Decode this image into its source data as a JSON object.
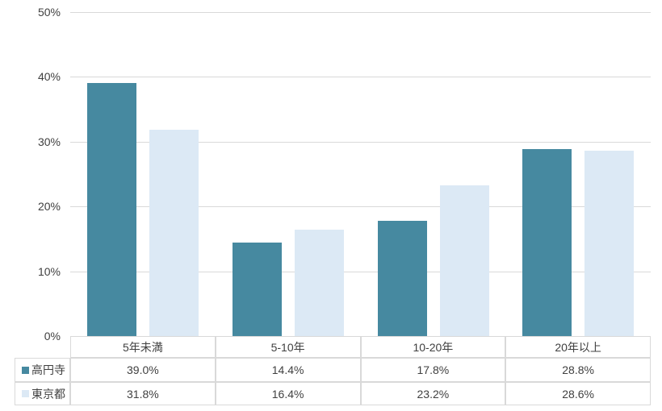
{
  "chart_data": {
    "type": "bar",
    "title": "",
    "xlabel": "",
    "ylabel": "",
    "categories": [
      "5年未満",
      "5-10年",
      "10-20年",
      "20年以上"
    ],
    "series": [
      {
        "name": "高円寺",
        "color": "#4689A0",
        "values": [
          39.0,
          14.4,
          17.8,
          28.8
        ],
        "value_labels": [
          "39.0%",
          "14.4%",
          "17.8%",
          "28.8%"
        ]
      },
      {
        "name": "東京都",
        "color": "#DCE9F5",
        "values": [
          31.8,
          16.4,
          23.2,
          28.6
        ],
        "value_labels": [
          "31.8%",
          "16.4%",
          "23.2%",
          "28.6%"
        ]
      }
    ],
    "ylim": [
      0,
      50
    ],
    "yticks": [
      0,
      10,
      20,
      30,
      40,
      50
    ],
    "ytick_labels": [
      "0%",
      "10%",
      "20%",
      "30%",
      "40%",
      "50%"
    ],
    "grid": true,
    "legend_position": "table-left-column",
    "colors": {
      "gridline": "#D9D9D9",
      "table_border": "#D9D9D9",
      "text": "#404040",
      "background": "#FFFFFF"
    }
  }
}
